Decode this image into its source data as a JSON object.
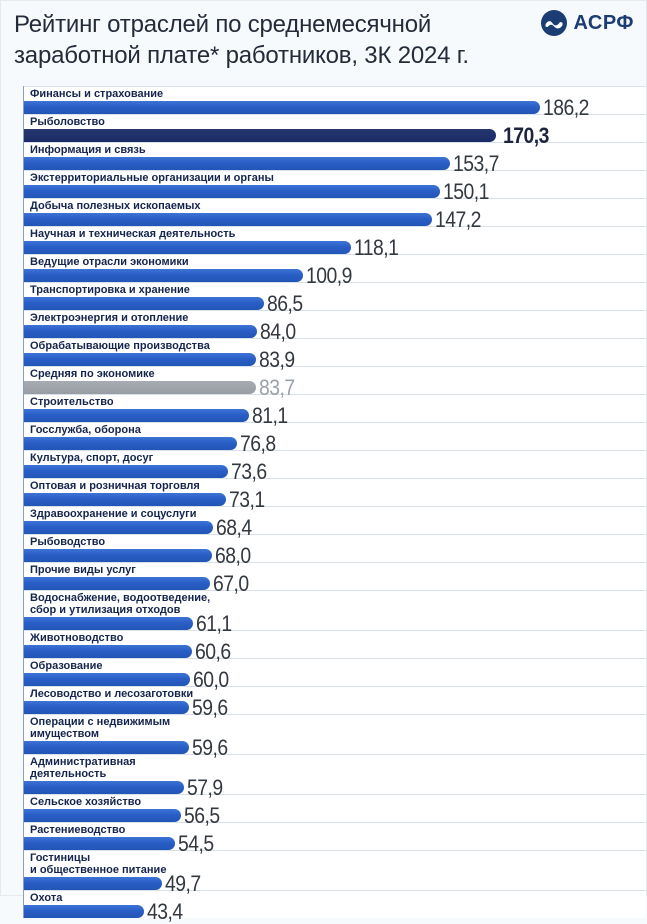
{
  "header": {
    "title": "Рейтинг отраслей по среднемесячной заработной плате* работников, 3К 2024 г.",
    "logo": {
      "text": "АСРФ",
      "icon": "wave-icon",
      "color": "#1c3c74"
    }
  },
  "colors": {
    "bar_blue": "#2a5ec6",
    "bar_navy": "#1b2b66",
    "bar_gray": "#9aa0a8",
    "label_text": "#16254e",
    "value_text": "#33383f",
    "background": "#f7fafd"
  },
  "chart_data": {
    "type": "bar",
    "orientation": "horizontal",
    "title": "Рейтинг отраслей по среднемесячной заработной плате* работников, 3К 2024 г.",
    "xlabel": "",
    "ylabel": "",
    "xlim": [
      0,
      225
    ],
    "grid": false,
    "legend": "none",
    "rows": [
      {
        "label": "Финансы и страхование",
        "value": 186.2,
        "value_label": "186,2",
        "style": "blue"
      },
      {
        "label": "Рыболовство",
        "value": 170.3,
        "value_label": "170,3",
        "style": "navy"
      },
      {
        "label": "Информация и связь",
        "value": 153.7,
        "value_label": "153,7",
        "style": "blue"
      },
      {
        "label": "Экстерриториальные организации и органы",
        "value": 150.1,
        "value_label": "150,1",
        "style": "blue"
      },
      {
        "label": "Добыча полезных ископаемых",
        "value": 147.2,
        "value_label": "147,2",
        "style": "blue"
      },
      {
        "label": "Научная и техническая деятельность",
        "value": 118.1,
        "value_label": "118,1",
        "style": "blue"
      },
      {
        "label": "Ведущие отрасли экономики",
        "value": 100.9,
        "value_label": "100,9",
        "style": "blue"
      },
      {
        "label": "Транспортировка и хранение",
        "value": 86.5,
        "value_label": "86,5",
        "style": "blue"
      },
      {
        "label": "Электроэнергия и отопление",
        "value": 84.0,
        "value_label": "84,0",
        "style": "blue"
      },
      {
        "label": "Обрабатывающие производства",
        "value": 83.9,
        "value_label": "83,9",
        "style": "blue"
      },
      {
        "label": "Средняя по экономике",
        "value": 83.7,
        "value_label": "83,7",
        "style": "gray"
      },
      {
        "label": "Строительство",
        "value": 81.1,
        "value_label": "81,1",
        "style": "blue"
      },
      {
        "label": "Госслужба, оборона",
        "value": 76.8,
        "value_label": "76,8",
        "style": "blue"
      },
      {
        "label": "Культура, спорт, досуг",
        "value": 73.6,
        "value_label": "73,6",
        "style": "blue"
      },
      {
        "label": "Оптовая и розничная торговля",
        "value": 73.1,
        "value_label": "73,1",
        "style": "blue"
      },
      {
        "label": "Здравоохранение и соцуслуги",
        "value": 68.4,
        "value_label": "68,4",
        "style": "blue"
      },
      {
        "label": "Рыбоводство",
        "value": 68.0,
        "value_label": "68,0",
        "style": "blue"
      },
      {
        "label": "Прочие виды услуг",
        "value": 67.0,
        "value_label": "67,0",
        "style": "blue"
      },
      {
        "label": "Водоснабжение, водоотведение,\nсбор и утилизация отходов",
        "value": 61.1,
        "value_label": "61,1",
        "style": "blue"
      },
      {
        "label": "Животноводство",
        "value": 60.6,
        "value_label": "60,6",
        "style": "blue"
      },
      {
        "label": "Образование",
        "value": 60.0,
        "value_label": "60,0",
        "style": "blue"
      },
      {
        "label": "Лесоводство и лесозаготовки",
        "value": 59.6,
        "value_label": "59,6",
        "style": "blue"
      },
      {
        "label": "Операции с недвижимым\nимуществом",
        "value": 59.6,
        "value_label": "59,6",
        "style": "blue"
      },
      {
        "label": "Административная\nдеятельность",
        "value": 57.9,
        "value_label": "57,9",
        "style": "blue"
      },
      {
        "label": "Сельское хозяйство",
        "value": 56.5,
        "value_label": "56,5",
        "style": "blue"
      },
      {
        "label": "Растениеводство",
        "value": 54.5,
        "value_label": "54,5",
        "style": "blue"
      },
      {
        "label": "Гостиницы\nи общественное питание",
        "value": 49.7,
        "value_label": "49,7",
        "style": "blue"
      },
      {
        "label": "Охота",
        "value": 43.4,
        "value_label": "43,4",
        "style": "blue"
      }
    ]
  }
}
